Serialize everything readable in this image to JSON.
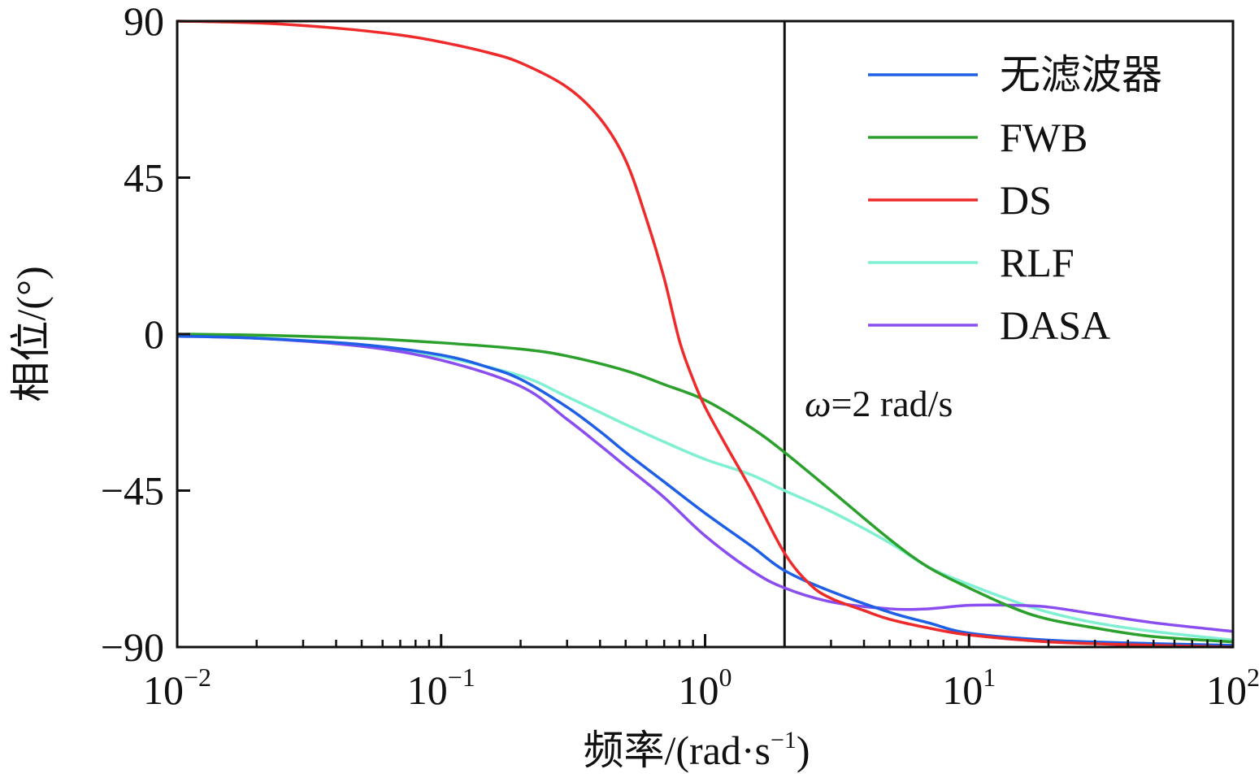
{
  "chart_data": {
    "type": "line",
    "xscale": "log",
    "xlim": [
      0.01,
      100
    ],
    "ylim": [
      -90,
      90
    ],
    "xlabel": "频率/(rad·s",
    "xlabel_sup": "−1",
    "xlabel_close": ")",
    "ylabel": "相位/(°)",
    "x_ticks": [
      {
        "base": "10",
        "exp": "−2",
        "value": 0.01
      },
      {
        "base": "10",
        "exp": "−1",
        "value": 0.1
      },
      {
        "base": "10",
        "exp": "0",
        "value": 1
      },
      {
        "base": "10",
        "exp": "1",
        "value": 10
      },
      {
        "base": "10",
        "exp": "2",
        "value": 100
      }
    ],
    "y_ticks": [
      {
        "label": "90",
        "value": 90
      },
      {
        "label": "45",
        "value": 45
      },
      {
        "label": "0",
        "value": 0
      },
      {
        "label": "−45",
        "value": -45
      },
      {
        "label": "−90",
        "value": -90
      }
    ],
    "vline": {
      "x": 2,
      "label_symbol": "ω",
      "label_rest": "=2 rad/s"
    },
    "legend_position": "top-right",
    "series": [
      {
        "name": "无滤波器",
        "color": "#1f5fe6",
        "points": [
          [
            0.01,
            -0.6
          ],
          [
            0.02,
            -1.2
          ],
          [
            0.05,
            -3.0
          ],
          [
            0.1,
            -6.0
          ],
          [
            0.15,
            -9.5
          ],
          [
            0.2,
            -13
          ],
          [
            0.3,
            -21
          ],
          [
            0.4,
            -28
          ],
          [
            0.5,
            -34
          ],
          [
            0.7,
            -42.5
          ],
          [
            1,
            -51.5
          ],
          [
            1.5,
            -61
          ],
          [
            2,
            -68
          ],
          [
            3,
            -74
          ],
          [
            5,
            -80
          ],
          [
            7,
            -83
          ],
          [
            10,
            -86
          ],
          [
            20,
            -88
          ],
          [
            50,
            -89
          ],
          [
            100,
            -89.5
          ]
        ]
      },
      {
        "name": "FWB",
        "color": "#2ca02c",
        "points": [
          [
            0.01,
            0
          ],
          [
            0.02,
            -0.3
          ],
          [
            0.05,
            -1.2
          ],
          [
            0.1,
            -2.5
          ],
          [
            0.2,
            -4.3
          ],
          [
            0.3,
            -6.3
          ],
          [
            0.5,
            -10.5
          ],
          [
            0.7,
            -14.5
          ],
          [
            1,
            -19
          ],
          [
            1.5,
            -27
          ],
          [
            2,
            -34
          ],
          [
            3,
            -45
          ],
          [
            5,
            -59
          ],
          [
            7,
            -67
          ],
          [
            10,
            -73
          ],
          [
            15,
            -79
          ],
          [
            20,
            -82
          ],
          [
            30,
            -84.5
          ],
          [
            50,
            -87
          ],
          [
            100,
            -88.5
          ]
        ]
      },
      {
        "name": "DS",
        "color": "#ee2a2a",
        "points": [
          [
            0.01,
            90
          ],
          [
            0.02,
            89.5
          ],
          [
            0.04,
            88
          ],
          [
            0.07,
            86
          ],
          [
            0.1,
            84
          ],
          [
            0.15,
            81
          ],
          [
            0.2,
            78
          ],
          [
            0.3,
            71
          ],
          [
            0.4,
            62
          ],
          [
            0.5,
            50
          ],
          [
            0.6,
            33
          ],
          [
            0.7,
            16
          ],
          [
            0.8,
            -2
          ],
          [
            0.9,
            -13
          ],
          [
            1,
            -21
          ],
          [
            1.2,
            -32
          ],
          [
            1.5,
            -45
          ],
          [
            2,
            -63
          ],
          [
            2.5,
            -72
          ],
          [
            3,
            -76
          ],
          [
            4,
            -79.5
          ],
          [
            5,
            -82
          ],
          [
            7,
            -84.5
          ],
          [
            10,
            -86.5
          ],
          [
            20,
            -88.5
          ],
          [
            50,
            -89.5
          ],
          [
            100,
            -90
          ]
        ]
      },
      {
        "name": "RLF",
        "color": "#7ff0d2",
        "points": [
          [
            0.01,
            -0.4
          ],
          [
            0.02,
            -1.0
          ],
          [
            0.05,
            -3.5
          ],
          [
            0.1,
            -6.5
          ],
          [
            0.2,
            -12
          ],
          [
            0.3,
            -18
          ],
          [
            0.5,
            -26
          ],
          [
            0.7,
            -31
          ],
          [
            1,
            -36
          ],
          [
            1.5,
            -40.5
          ],
          [
            2,
            -45
          ],
          [
            3,
            -51
          ],
          [
            5,
            -60
          ],
          [
            7,
            -67
          ],
          [
            10,
            -72
          ],
          [
            15,
            -77
          ],
          [
            20,
            -80
          ],
          [
            30,
            -83
          ],
          [
            50,
            -85.5
          ],
          [
            100,
            -88
          ]
        ]
      },
      {
        "name": "DASA",
        "color": "#8a4df0",
        "points": [
          [
            0.01,
            -0.6
          ],
          [
            0.02,
            -1.2
          ],
          [
            0.05,
            -3.5
          ],
          [
            0.1,
            -7.5
          ],
          [
            0.2,
            -15
          ],
          [
            0.3,
            -24.5
          ],
          [
            0.4,
            -32
          ],
          [
            0.5,
            -38
          ],
          [
            0.7,
            -47
          ],
          [
            1,
            -58
          ],
          [
            1.5,
            -68
          ],
          [
            2,
            -73
          ],
          [
            3,
            -77
          ],
          [
            5,
            -79
          ],
          [
            7,
            -79
          ],
          [
            10,
            -78
          ],
          [
            15,
            -78
          ],
          [
            20,
            -78.5
          ],
          [
            30,
            -80.5
          ],
          [
            50,
            -83
          ],
          [
            100,
            -85.5
          ]
        ]
      }
    ]
  }
}
